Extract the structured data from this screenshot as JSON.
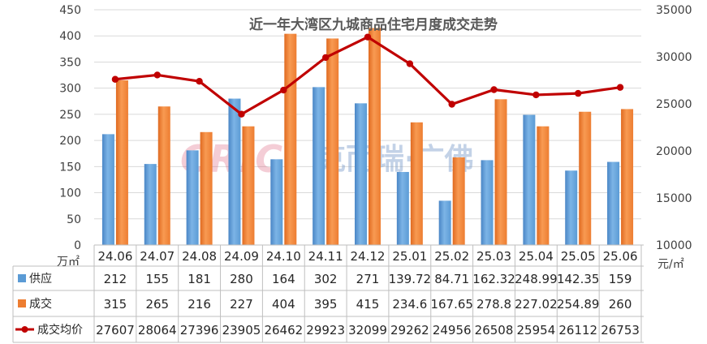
{
  "chart_data": {
    "type": "bar",
    "title": "近一年大湾区九城商品住宅月度成交走势",
    "categories": [
      "24.06",
      "24.07",
      "24.08",
      "24.09",
      "24.10",
      "24.11",
      "24.12",
      "25.01",
      "25.02",
      "25.03",
      "25.04",
      "25.05",
      "25.06"
    ],
    "left_axis_unit": "万㎡",
    "right_axis_unit": "元/㎡",
    "ylim_left": [
      0,
      450
    ],
    "yticks_left": [
      "0",
      "50",
      "100",
      "150",
      "200",
      "250",
      "300",
      "350",
      "400",
      "450"
    ],
    "ylim_right": [
      10000,
      35000
    ],
    "yticks_right": [
      "10000",
      "15000",
      "20000",
      "25000",
      "30000",
      "35000"
    ],
    "grid": true,
    "legend_placement": "data table below plot",
    "watermark": "CRIC 克而瑞·广佛",
    "series": [
      {
        "name": "供应",
        "kind": "bar",
        "axis": "left",
        "color": "#5b9bd5",
        "values": [
          212,
          155,
          181,
          280,
          164,
          302,
          271,
          139.72,
          84.71,
          162.32,
          248.99,
          142.35,
          159
        ],
        "labels": [
          "212",
          "155",
          "181",
          "280",
          "164",
          "302",
          "271",
          "139.72",
          "84.71",
          "162.32",
          "248.99",
          "142.35",
          "159"
        ]
      },
      {
        "name": "成交",
        "kind": "bar",
        "axis": "left",
        "color": "#ed7d31",
        "values": [
          315,
          265,
          216,
          227,
          404,
          395,
          415,
          234.6,
          167.65,
          278.8,
          227.02,
          254.89,
          260
        ],
        "labels": [
          "315",
          "265",
          "216",
          "227",
          "404",
          "395",
          "415",
          "234.6",
          "167.65",
          "278.8",
          "227.02",
          "254.89",
          "260"
        ]
      },
      {
        "name": "成交均价",
        "kind": "line",
        "axis": "right",
        "color": "#c00000",
        "values": [
          27607,
          28064,
          27396,
          23905,
          26462,
          29923,
          32099,
          29262,
          24956,
          26508,
          25954,
          26112,
          26753
        ],
        "labels": [
          "27607",
          "28064",
          "27396",
          "23905",
          "26462",
          "29923",
          "32099",
          "29262",
          "24956",
          "26508",
          "25954",
          "26112",
          "26753"
        ]
      }
    ]
  }
}
